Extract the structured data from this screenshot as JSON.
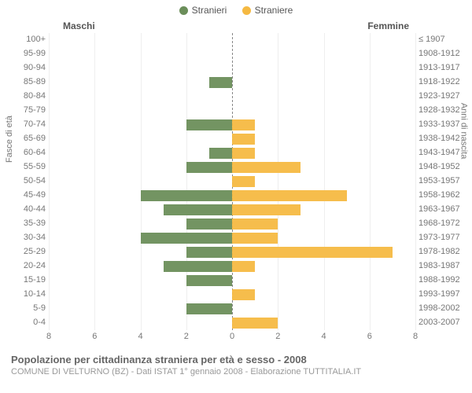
{
  "chart": {
    "type": "population-pyramid",
    "legend": [
      {
        "label": "Stranieri",
        "color": "#6b8e5a"
      },
      {
        "label": "Straniere",
        "color": "#f5b942"
      }
    ],
    "columns": {
      "left": "Maschi",
      "right": "Femmine"
    },
    "axis_titles": {
      "left": "Fasce di età",
      "right": "Anni di nascita"
    },
    "x_ticks": [
      8,
      6,
      4,
      2,
      0,
      2,
      4,
      6,
      8
    ],
    "xlim": 8,
    "background_color": "#ffffff",
    "grid_color": "#eeeeee",
    "center_line_color": "#888888",
    "bar_fill_opacity": 0.95,
    "rows": [
      {
        "age": "100+",
        "birth": "≤ 1907",
        "m": 0,
        "f": 0
      },
      {
        "age": "95-99",
        "birth": "1908-1912",
        "m": 0,
        "f": 0
      },
      {
        "age": "90-94",
        "birth": "1913-1917",
        "m": 0,
        "f": 0
      },
      {
        "age": "85-89",
        "birth": "1918-1922",
        "m": 1,
        "f": 0
      },
      {
        "age": "80-84",
        "birth": "1923-1927",
        "m": 0,
        "f": 0
      },
      {
        "age": "75-79",
        "birth": "1928-1932",
        "m": 0,
        "f": 0
      },
      {
        "age": "70-74",
        "birth": "1933-1937",
        "m": 2,
        "f": 1
      },
      {
        "age": "65-69",
        "birth": "1938-1942",
        "m": 0,
        "f": 1
      },
      {
        "age": "60-64",
        "birth": "1943-1947",
        "m": 1,
        "f": 1
      },
      {
        "age": "55-59",
        "birth": "1948-1952",
        "m": 2,
        "f": 3
      },
      {
        "age": "50-54",
        "birth": "1953-1957",
        "m": 0,
        "f": 1
      },
      {
        "age": "45-49",
        "birth": "1958-1962",
        "m": 4,
        "f": 5
      },
      {
        "age": "40-44",
        "birth": "1963-1967",
        "m": 3,
        "f": 3
      },
      {
        "age": "35-39",
        "birth": "1968-1972",
        "m": 2,
        "f": 2
      },
      {
        "age": "30-34",
        "birth": "1973-1977",
        "m": 4,
        "f": 2
      },
      {
        "age": "25-29",
        "birth": "1978-1982",
        "m": 2,
        "f": 7
      },
      {
        "age": "20-24",
        "birth": "1983-1987",
        "m": 3,
        "f": 1
      },
      {
        "age": "15-19",
        "birth": "1988-1992",
        "m": 2,
        "f": 0
      },
      {
        "age": "10-14",
        "birth": "1993-1997",
        "m": 0,
        "f": 1
      },
      {
        "age": "5-9",
        "birth": "1998-2002",
        "m": 2,
        "f": 0
      },
      {
        "age": "0-4",
        "birth": "2003-2007",
        "m": 0,
        "f": 2
      }
    ]
  },
  "footer": {
    "title": "Popolazione per cittadinanza straniera per età e sesso - 2008",
    "subtitle": "COMUNE DI VELTURNO (BZ) - Dati ISTAT 1° gennaio 2008 - Elaborazione TUTTITALIA.IT"
  }
}
